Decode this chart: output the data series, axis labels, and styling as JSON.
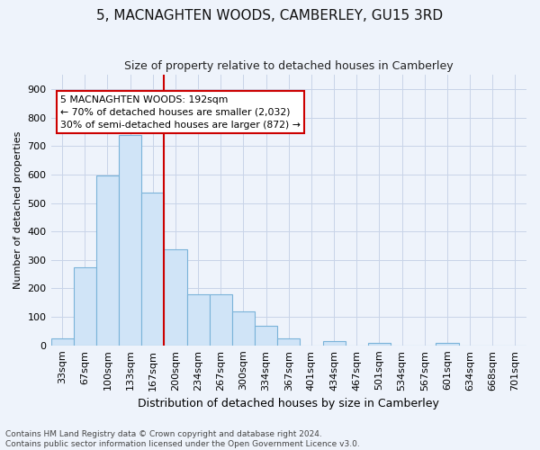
{
  "title": "5, MACNAGHTEN WOODS, CAMBERLEY, GU15 3RD",
  "subtitle": "Size of property relative to detached houses in Camberley",
  "xlabel": "Distribution of detached houses by size in Camberley",
  "ylabel": "Number of detached properties",
  "bar_labels": [
    "33sqm",
    "67sqm",
    "100sqm",
    "133sqm",
    "167sqm",
    "200sqm",
    "234sqm",
    "267sqm",
    "300sqm",
    "334sqm",
    "367sqm",
    "401sqm",
    "434sqm",
    "467sqm",
    "501sqm",
    "534sqm",
    "567sqm",
    "601sqm",
    "634sqm",
    "668sqm",
    "701sqm"
  ],
  "bar_values": [
    25,
    275,
    595,
    740,
    535,
    338,
    178,
    178,
    120,
    68,
    25,
    0,
    15,
    0,
    10,
    0,
    0,
    10,
    0,
    0,
    0
  ],
  "bar_color": "#d0e4f7",
  "bar_edgecolor": "#7ab3d9",
  "vline_index": 5,
  "vline_color": "#cc0000",
  "annotation_line1": "5 MACNAGHTEN WOODS: 192sqm",
  "annotation_line2": "← 70% of detached houses are smaller (2,032)",
  "annotation_line3": "30% of semi-detached houses are larger (872) →",
  "annotation_box_facecolor": "#ffffff",
  "annotation_box_edgecolor": "#cc0000",
  "ylim": [
    0,
    950
  ],
  "yticks": [
    0,
    100,
    200,
    300,
    400,
    500,
    600,
    700,
    800,
    900
  ],
  "footer_line1": "Contains HM Land Registry data © Crown copyright and database right 2024.",
  "footer_line2": "Contains public sector information licensed under the Open Government Licence v3.0.",
  "bg_color": "#eef3fb",
  "plot_bg_color": "#eef3fb",
  "grid_color": "#c8d4e8",
  "title_fontsize": 11,
  "subtitle_fontsize": 9,
  "xlabel_fontsize": 9,
  "ylabel_fontsize": 8,
  "tick_fontsize": 8,
  "footer_fontsize": 6.5
}
